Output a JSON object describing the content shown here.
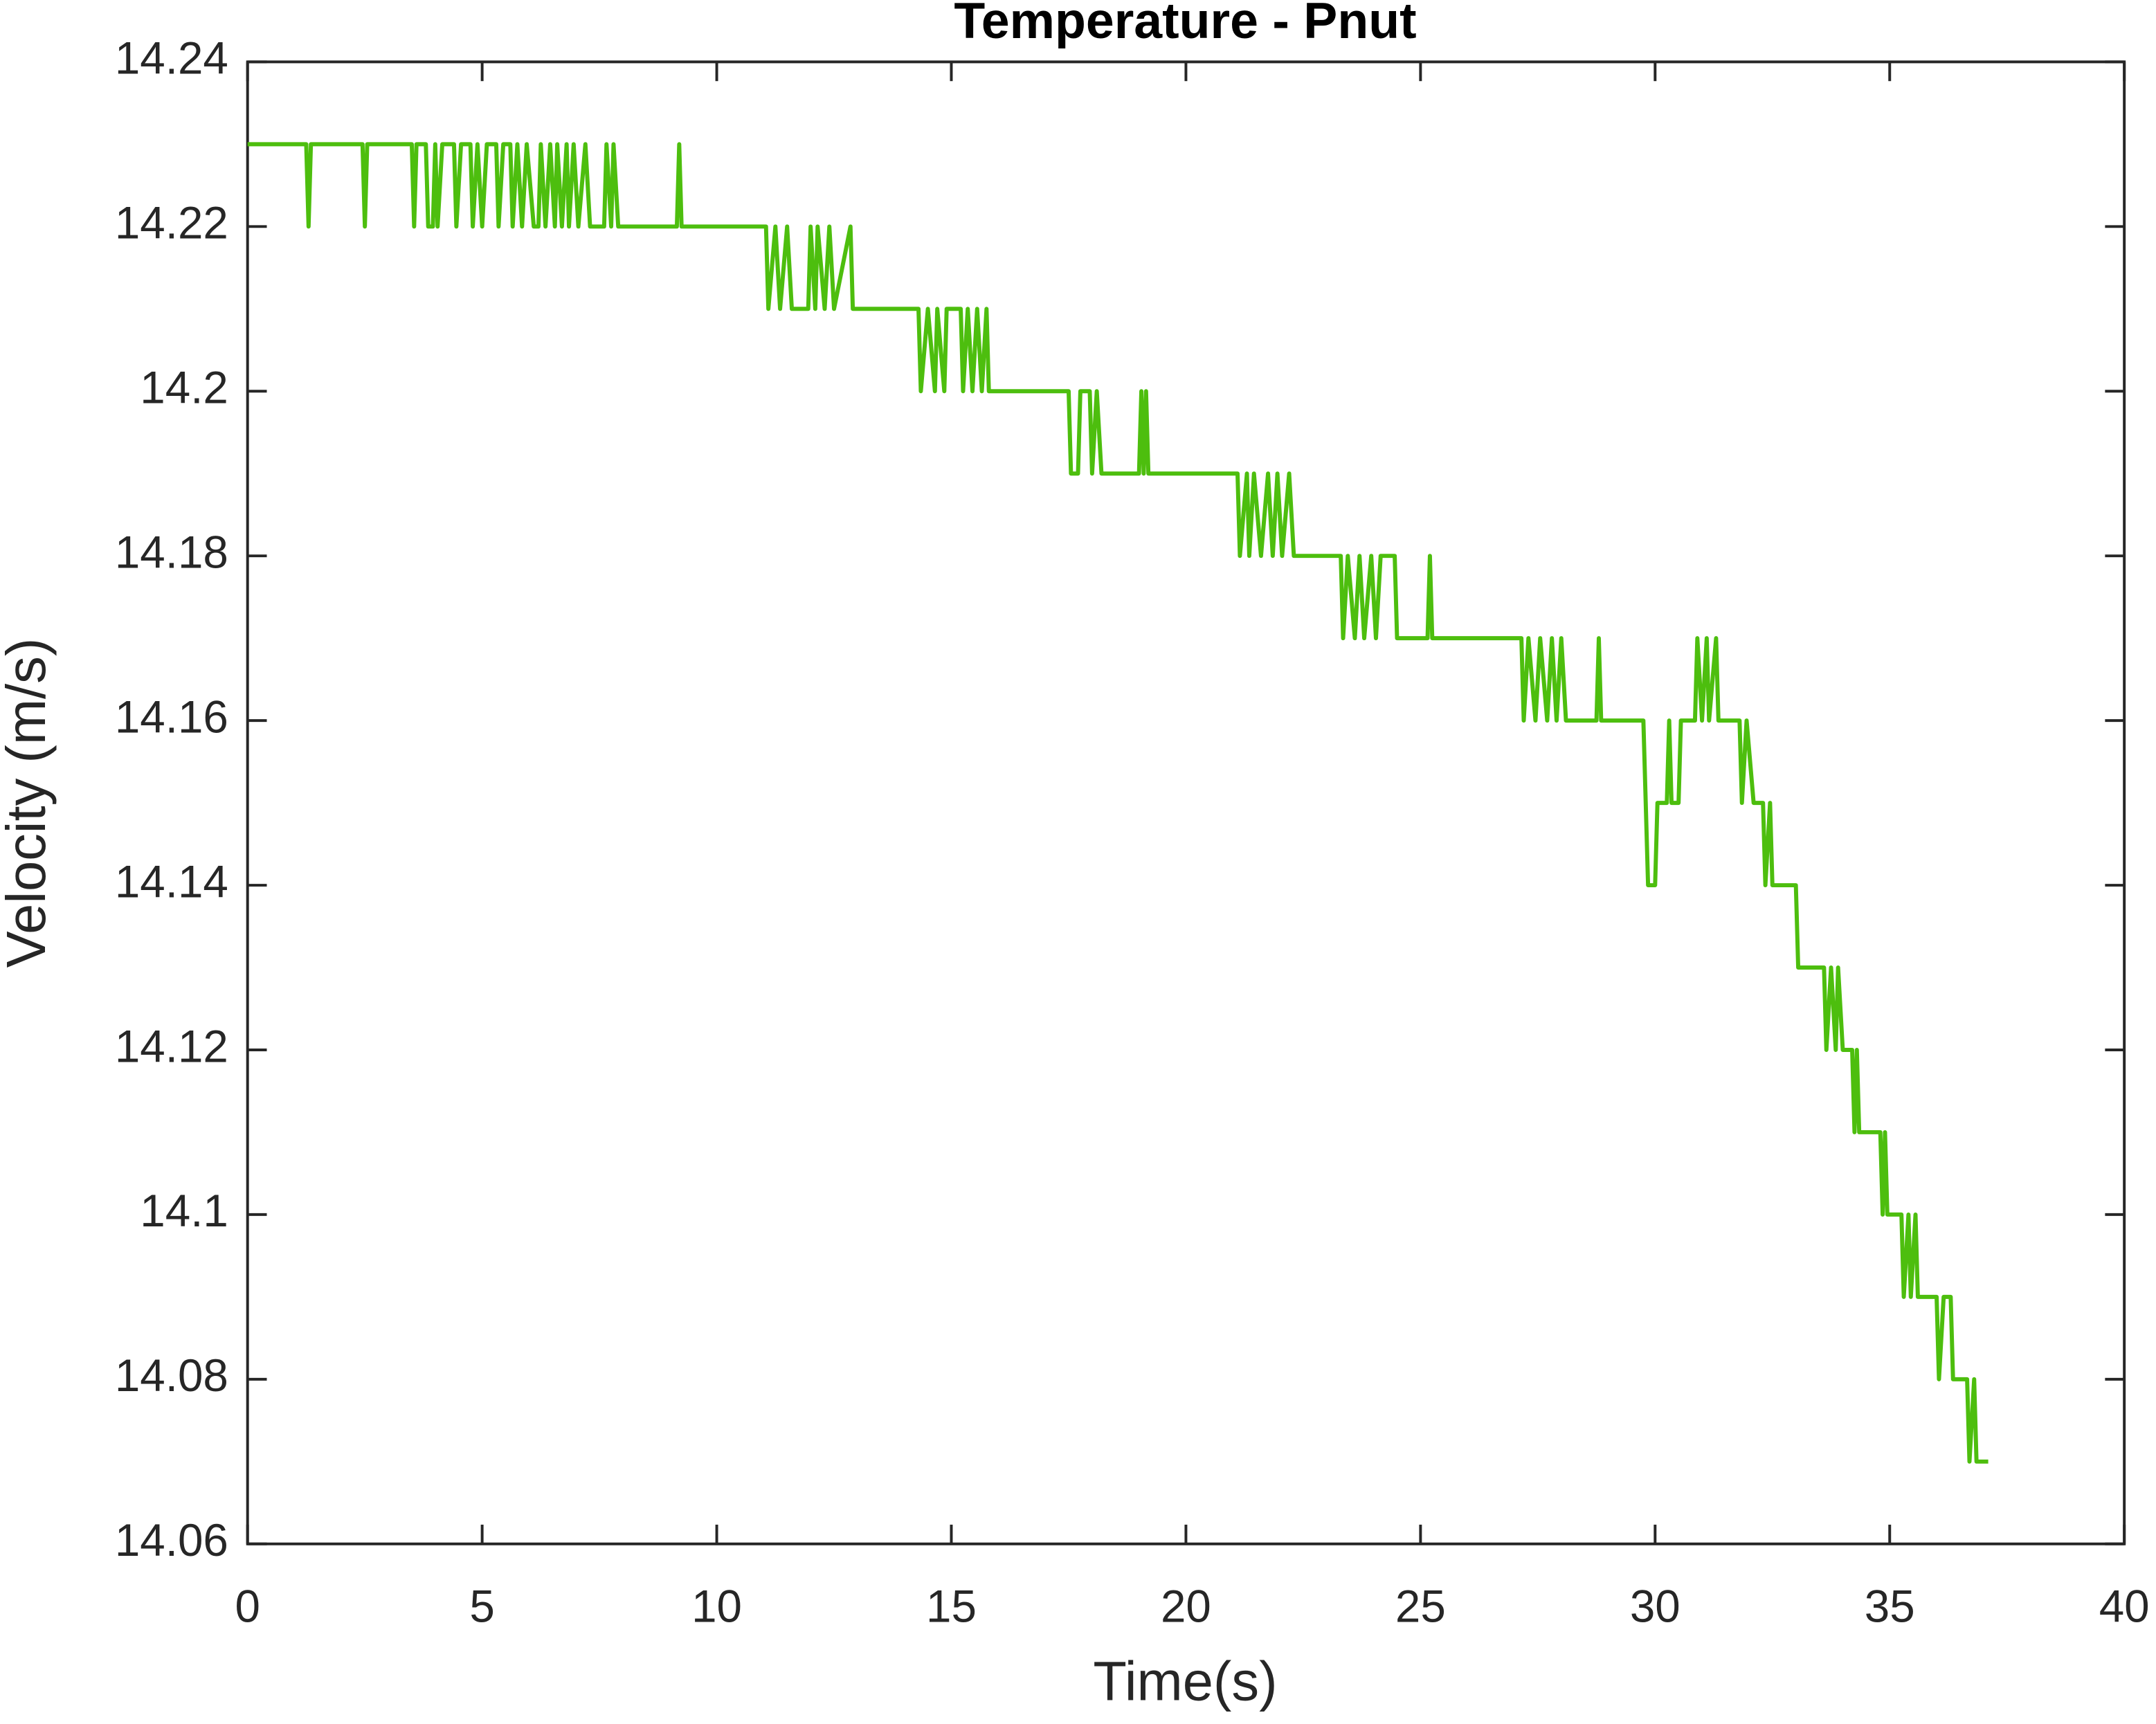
{
  "chart_data": {
    "type": "line",
    "title": "Temperature - Pnut",
    "xlabel": "Time(s)",
    "ylabel": "Velocity (m/s)",
    "xlim": [
      0,
      40
    ],
    "xticks": [
      0,
      5,
      10,
      15,
      20,
      25,
      30,
      35,
      40
    ],
    "ylim": [
      14.06,
      14.24
    ],
    "yticks": [
      14.06,
      14.08,
      14.1,
      14.12,
      14.14,
      14.16,
      14.18,
      14.2,
      14.22,
      14.24
    ],
    "series": [
      {
        "color": "#4dbe0e",
        "x": [
          0,
          1.25,
          1.3,
          1.35,
          2.45,
          2.5,
          2.55,
          3.5,
          3.55,
          3.6,
          3.8,
          3.85,
          3.95,
          4.0,
          4.05,
          4.15,
          4.4,
          4.45,
          4.55,
          4.75,
          4.8,
          4.9,
          5.0,
          5.1,
          5.3,
          5.35,
          5.45,
          5.6,
          5.65,
          5.75,
          5.85,
          5.95,
          6.1,
          6.2,
          6.25,
          6.35,
          6.45,
          6.55,
          6.6,
          6.7,
          6.8,
          6.85,
          6.95,
          7.05,
          7.2,
          7.3,
          7.6,
          7.65,
          7.75,
          7.8,
          7.9,
          9.15,
          9.2,
          9.25,
          11.05,
          11.1,
          11.25,
          11.35,
          11.5,
          11.6,
          11.95,
          12.0,
          12.1,
          12.15,
          12.3,
          12.4,
          12.5,
          12.85,
          12.9,
          14.3,
          14.35,
          14.5,
          14.65,
          14.7,
          14.85,
          14.9,
          15.2,
          15.25,
          15.35,
          15.45,
          15.55,
          15.65,
          15.75,
          15.8,
          17.5,
          17.55,
          17.7,
          17.75,
          17.95,
          18.0,
          18.1,
          18.2,
          19.0,
          19.05,
          19.1,
          19.15,
          19.2,
          21.1,
          21.15,
          21.3,
          21.35,
          21.45,
          21.6,
          21.75,
          21.85,
          21.95,
          22.05,
          22.2,
          22.3,
          23.3,
          23.35,
          23.45,
          23.6,
          23.7,
          23.8,
          23.95,
          24.05,
          24.15,
          24.45,
          24.5,
          25.15,
          25.2,
          25.25,
          27.15,
          27.2,
          27.3,
          27.45,
          27.55,
          27.7,
          27.8,
          27.9,
          28.0,
          28.1,
          28.75,
          28.8,
          28.85,
          29.75,
          29.85,
          30.0,
          30.05,
          30.25,
          30.3,
          30.35,
          30.5,
          30.55,
          30.85,
          30.9,
          31.0,
          31.1,
          31.15,
          31.3,
          31.35,
          31.8,
          31.85,
          31.95,
          32.1,
          32.3,
          32.35,
          32.45,
          32.5,
          33.0,
          33.05,
          33.6,
          33.65,
          33.75,
          33.85,
          33.9,
          34.0,
          34.2,
          34.25,
          34.3,
          34.35,
          34.8,
          34.85,
          34.9,
          34.95,
          35.25,
          35.3,
          35.4,
          35.45,
          35.55,
          35.6,
          36.0,
          36.05,
          36.15,
          36.3,
          36.35,
          36.65,
          36.7,
          36.8,
          36.85,
          37.1
        ],
        "values": [
          14.23,
          14.23,
          14.22,
          14.23,
          14.23,
          14.22,
          14.23,
          14.23,
          14.22,
          14.23,
          14.23,
          14.22,
          14.22,
          14.23,
          14.22,
          14.23,
          14.23,
          14.22,
          14.23,
          14.23,
          14.22,
          14.23,
          14.22,
          14.23,
          14.23,
          14.22,
          14.23,
          14.23,
          14.22,
          14.23,
          14.22,
          14.23,
          14.22,
          14.22,
          14.23,
          14.22,
          14.23,
          14.22,
          14.23,
          14.22,
          14.23,
          14.22,
          14.23,
          14.22,
          14.23,
          14.22,
          14.22,
          14.23,
          14.22,
          14.23,
          14.22,
          14.22,
          14.23,
          14.22,
          14.22,
          14.21,
          14.22,
          14.21,
          14.22,
          14.21,
          14.21,
          14.22,
          14.21,
          14.22,
          14.21,
          14.22,
          14.21,
          14.22,
          14.21,
          14.21,
          14.2,
          14.21,
          14.2,
          14.21,
          14.2,
          14.21,
          14.21,
          14.2,
          14.21,
          14.2,
          14.21,
          14.2,
          14.21,
          14.2,
          14.2,
          14.19,
          14.19,
          14.2,
          14.2,
          14.19,
          14.2,
          14.19,
          14.19,
          14.2,
          14.19,
          14.2,
          14.19,
          14.19,
          14.18,
          14.19,
          14.18,
          14.19,
          14.18,
          14.19,
          14.18,
          14.19,
          14.18,
          14.19,
          14.18,
          14.18,
          14.17,
          14.18,
          14.17,
          14.18,
          14.17,
          14.18,
          14.17,
          14.18,
          14.18,
          14.17,
          14.17,
          14.18,
          14.17,
          14.17,
          14.16,
          14.17,
          14.16,
          14.17,
          14.16,
          14.17,
          14.16,
          14.17,
          14.16,
          14.16,
          14.17,
          14.16,
          14.16,
          14.14,
          14.14,
          14.15,
          14.15,
          14.16,
          14.15,
          14.15,
          14.16,
          14.16,
          14.17,
          14.16,
          14.17,
          14.16,
          14.17,
          14.16,
          14.16,
          14.15,
          14.16,
          14.15,
          14.15,
          14.14,
          14.15,
          14.14,
          14.14,
          14.13,
          14.13,
          14.12,
          14.13,
          14.12,
          14.13,
          14.12,
          14.12,
          14.11,
          14.12,
          14.11,
          14.11,
          14.1,
          14.11,
          14.1,
          14.1,
          14.09,
          14.1,
          14.09,
          14.1,
          14.09,
          14.09,
          14.08,
          14.09,
          14.09,
          14.08,
          14.08,
          14.07,
          14.08,
          14.07,
          14.07
        ]
      }
    ]
  }
}
